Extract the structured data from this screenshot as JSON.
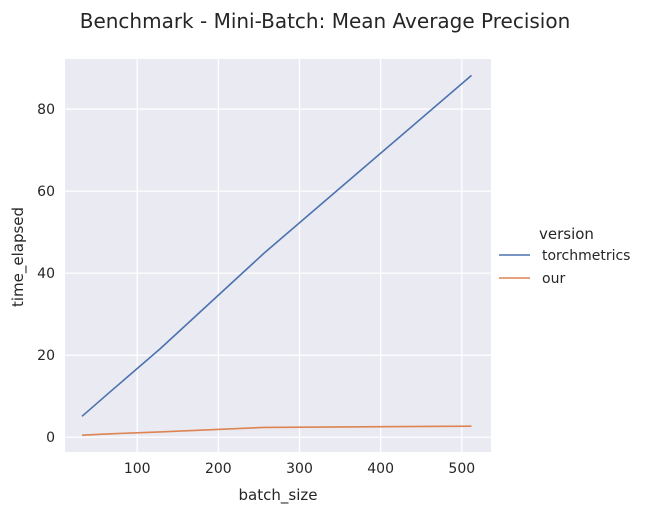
{
  "chart_data": {
    "type": "line",
    "title": "Benchmark - Mini-Batch: Mean Average Precision",
    "xlabel": "batch_size",
    "ylabel": "time_elapsed",
    "xlim": [
      11,
      536
    ],
    "ylim": [
      -3.6,
      92.2
    ],
    "xticks": [
      100,
      200,
      300,
      400,
      500
    ],
    "yticks": [
      0,
      20,
      40,
      60,
      80
    ],
    "grid": true,
    "legend": {
      "title": "version",
      "placement": "right"
    },
    "series": [
      {
        "name": "torchmetrics",
        "color": "#4c72b0",
        "x": [
          32,
          64,
          128,
          256,
          512
        ],
        "y": [
          5.1,
          10.6,
          21.5,
          44.8,
          88.2
        ]
      },
      {
        "name": "our",
        "color": "#dd8452",
        "x": [
          32,
          64,
          128,
          256,
          512
        ],
        "y": [
          0.5,
          0.8,
          1.3,
          2.4,
          2.7
        ]
      }
    ]
  },
  "style": {
    "plot_bg": "#eaeaf2",
    "grid_color": "#ffffff"
  }
}
